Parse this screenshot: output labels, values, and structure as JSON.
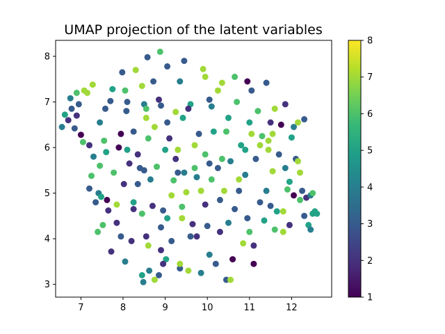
{
  "chart_data": {
    "type": "scatter",
    "title": "UMAP projection of the latent variables",
    "xlabel": "",
    "ylabel": "",
    "xlim": [
      6.4,
      12.95
    ],
    "ylim": [
      2.72,
      8.35
    ],
    "xticks": [
      7,
      8,
      9,
      10,
      11,
      12
    ],
    "yticks": [
      3,
      4,
      5,
      6,
      7,
      8
    ],
    "colorbar": {
      "label": "",
      "range": [
        1,
        8
      ],
      "ticks": [
        1,
        2,
        3,
        4,
        5,
        6,
        7,
        8
      ],
      "colormap": "viridis"
    },
    "grid": false,
    "legend": "none",
    "marker_size_label": "",
    "points": [
      [
        6.55,
        6.45,
        4
      ],
      [
        6.62,
        6.72,
        5
      ],
      [
        6.7,
        6.6,
        2
      ],
      [
        6.75,
        7.08,
        4
      ],
      [
        6.78,
        6.85,
        3
      ],
      [
        6.85,
        6.42,
        3
      ],
      [
        6.9,
        7.2,
        6
      ],
      [
        6.95,
        6.95,
        3
      ],
      [
        7.0,
        6.28,
        1
      ],
      [
        7.05,
        6.12,
        6
      ],
      [
        7.08,
        7.25,
        7
      ],
      [
        7.15,
        7.2,
        7
      ],
      [
        7.2,
        5.1,
        3
      ],
      [
        7.25,
        5.38,
        6
      ],
      [
        7.28,
        7.38,
        7
      ],
      [
        7.35,
        4.8,
        3
      ],
      [
        7.42,
        5.0,
        4
      ],
      [
        7.45,
        6.55,
        4
      ],
      [
        7.48,
        4.92,
        5
      ],
      [
        7.52,
        4.3,
        6
      ],
      [
        7.55,
        6.15,
        6
      ],
      [
        7.58,
        6.85,
        3
      ],
      [
        7.62,
        4.85,
        1
      ],
      [
        7.65,
        4.62,
        2
      ],
      [
        7.7,
        7.02,
        3
      ],
      [
        7.72,
        3.72,
        2
      ],
      [
        7.75,
        7.28,
        5
      ],
      [
        7.78,
        5.45,
        6
      ],
      [
        7.85,
        4.75,
        7
      ],
      [
        7.9,
        6.0,
        1
      ],
      [
        7.95,
        4.05,
        3
      ],
      [
        7.98,
        7.65,
        3
      ],
      [
        8.02,
        5.2,
        2
      ],
      [
        8.05,
        3.5,
        4
      ],
      [
        8.08,
        6.8,
        3
      ],
      [
        8.1,
        7.0,
        3
      ],
      [
        8.15,
        5.65,
        2
      ],
      [
        8.2,
        3.95,
        2
      ],
      [
        8.25,
        4.8,
        5
      ],
      [
        8.3,
        7.7,
        7
      ],
      [
        8.35,
        5.85,
        2
      ],
      [
        8.4,
        5.55,
        3
      ],
      [
        8.45,
        4.55,
        6
      ],
      [
        8.48,
        3.05,
        4
      ],
      [
        8.5,
        6.95,
        4
      ],
      [
        8.55,
        6.65,
        7
      ],
      [
        8.58,
        7.98,
        3
      ],
      [
        8.62,
        3.3,
        4
      ],
      [
        8.65,
        5.3,
        4
      ],
      [
        8.7,
        4.72,
        2
      ],
      [
        8.72,
        7.45,
        3
      ],
      [
        8.75,
        6.45,
        7
      ],
      [
        8.8,
        5.58,
        6
      ],
      [
        8.85,
        3.2,
        3
      ],
      [
        8.88,
        8.1,
        6
      ],
      [
        8.9,
        6.92,
        3
      ],
      [
        8.95,
        4.62,
        3
      ],
      [
        9.0,
        5.95,
        5
      ],
      [
        9.02,
        3.55,
        5
      ],
      [
        9.05,
        7.78,
        3
      ],
      [
        9.1,
        6.2,
        2
      ],
      [
        9.15,
        4.95,
        7
      ],
      [
        9.2,
        5.28,
        6
      ],
      [
        9.25,
        6.78,
        7
      ],
      [
        9.3,
        5.45,
        3
      ],
      [
        9.35,
        3.35,
        3
      ],
      [
        9.4,
        4.7,
        6
      ],
      [
        9.42,
        6.65,
        5
      ],
      [
        9.45,
        7.9,
        3
      ],
      [
        9.5,
        5.02,
        7
      ],
      [
        9.55,
        3.3,
        7
      ],
      [
        9.6,
        6.95,
        5
      ],
      [
        9.65,
        4.32,
        2
      ],
      [
        9.7,
        5.55,
        6
      ],
      [
        9.75,
        4.05,
        2
      ],
      [
        9.8,
        6.3,
        3
      ],
      [
        9.85,
        3.25,
        4
      ],
      [
        9.9,
        7.72,
        7
      ],
      [
        9.95,
        5.85,
        6
      ],
      [
        10.0,
        4.28,
        3
      ],
      [
        10.05,
        7.05,
        3
      ],
      [
        10.1,
        5.3,
        6
      ],
      [
        10.15,
        6.35,
        5
      ],
      [
        10.2,
        3.45,
        3
      ],
      [
        10.25,
        5.55,
        3
      ],
      [
        10.3,
        4.15,
        2
      ],
      [
        10.35,
        7.42,
        7
      ],
      [
        10.4,
        5.05,
        7
      ],
      [
        10.45,
        3.1,
        3
      ],
      [
        10.5,
        6.65,
        5
      ],
      [
        10.55,
        5.7,
        4
      ],
      [
        10.6,
        3.55,
        1
      ],
      [
        10.65,
        4.65,
        3
      ],
      [
        10.7,
        7.0,
        6
      ],
      [
        10.75,
        5.3,
        7
      ],
      [
        10.8,
        6.05,
        5
      ],
      [
        10.85,
        3.9,
        7
      ],
      [
        10.9,
        5.4,
        4
      ],
      [
        10.95,
        7.45,
        1
      ],
      [
        11.0,
        4.15,
        6
      ],
      [
        11.05,
        6.3,
        7
      ],
      [
        11.1,
        3.45,
        1
      ],
      [
        11.15,
        5.75,
        3
      ],
      [
        11.2,
        6.8,
        6
      ],
      [
        11.25,
        4.8,
        3
      ],
      [
        11.3,
        6.25,
        6
      ],
      [
        11.35,
        4.4,
        5
      ],
      [
        11.4,
        7.42,
        3
      ],
      [
        11.45,
        6.15,
        7
      ],
      [
        11.5,
        4.72,
        3
      ],
      [
        11.55,
        5.48,
        7
      ],
      [
        11.6,
        6.85,
        7
      ],
      [
        11.65,
        4.6,
        5
      ],
      [
        11.7,
        5.85,
        3
      ],
      [
        11.75,
        6.5,
        1
      ],
      [
        11.8,
        4.15,
        7
      ],
      [
        11.85,
        6.95,
        2
      ],
      [
        11.9,
        5.08,
        6
      ],
      [
        11.95,
        4.3,
        2
      ],
      [
        12.0,
        6.22,
        5
      ],
      [
        12.05,
        4.95,
        1
      ],
      [
        12.1,
        5.75,
        3
      ],
      [
        12.15,
        6.55,
        7
      ],
      [
        12.2,
        4.85,
        6
      ],
      [
        12.25,
        5.05,
        3
      ],
      [
        12.3,
        6.62,
        3
      ],
      [
        12.35,
        4.9,
        2
      ],
      [
        12.4,
        4.3,
        5
      ],
      [
        12.45,
        4.95,
        4
      ],
      [
        12.5,
        4.55,
        5
      ],
      [
        12.55,
        4.6,
        5
      ],
      [
        12.6,
        4.55,
        5
      ],
      [
        6.9,
        6.7,
        2
      ],
      [
        7.3,
        5.8,
        4
      ],
      [
        7.6,
        5.9,
        5
      ],
      [
        7.95,
        6.3,
        1
      ],
      [
        8.25,
        6.35,
        3
      ],
      [
        8.6,
        6.2,
        6
      ],
      [
        8.35,
        5.2,
        3
      ],
      [
        8.55,
        4.05,
        2
      ],
      [
        8.6,
        3.85,
        7
      ],
      [
        8.75,
        3.1,
        7
      ],
      [
        8.95,
        3.45,
        2
      ],
      [
        9.05,
        4.45,
        5
      ],
      [
        9.15,
        3.95,
        3
      ],
      [
        9.25,
        5.75,
        2
      ],
      [
        9.45,
        5.45,
        4
      ],
      [
        9.6,
        4.05,
        3
      ],
      [
        9.7,
        6.05,
        7
      ],
      [
        9.85,
        5.05,
        7
      ],
      [
        10.05,
        5.65,
        3
      ],
      [
        10.3,
        4.85,
        3
      ],
      [
        10.55,
        3.1,
        7
      ],
      [
        10.75,
        5.05,
        3
      ],
      [
        10.95,
        4.45,
        3
      ],
      [
        11.1,
        3.85,
        2
      ],
      [
        11.25,
        6.05,
        7
      ],
      [
        11.4,
        5.05,
        4
      ],
      [
        11.55,
        6.3,
        7
      ],
      [
        11.8,
        4.6,
        7
      ],
      [
        11.95,
        5.25,
        5
      ],
      [
        12.15,
        5.7,
        7
      ],
      [
        12.3,
        4.5,
        3
      ],
      [
        12.45,
        4.2,
        4
      ],
      [
        8.05,
        7.25,
        6
      ],
      [
        8.45,
        7.35,
        7
      ],
      [
        8.85,
        7.05,
        2
      ],
      [
        9.35,
        7.45,
        4
      ],
      [
        9.95,
        7.55,
        7
      ],
      [
        10.25,
        7.25,
        7
      ],
      [
        10.65,
        7.55,
        6
      ],
      [
        11.05,
        7.25,
        3
      ],
      [
        8.55,
        6.85,
        6
      ],
      [
        9.05,
        6.55,
        3
      ],
      [
        9.55,
        6.85,
        2
      ],
      [
        10.1,
        6.9,
        4
      ],
      [
        10.45,
        6.35,
        6
      ],
      [
        11.0,
        6.55,
        5
      ],
      [
        11.5,
        6.55,
        2
      ],
      [
        12.05,
        6.45,
        4
      ],
      [
        7.4,
        4.15,
        6
      ],
      [
        7.85,
        4.35,
        2
      ],
      [
        8.25,
        4.65,
        2
      ],
      [
        8.9,
        4.25,
        3
      ],
      [
        9.4,
        4.45,
        7
      ],
      [
        9.95,
        4.75,
        2
      ],
      [
        10.5,
        4.35,
        4
      ],
      [
        11.6,
        4.2,
        6
      ],
      [
        7.2,
        6.05,
        2
      ],
      [
        7.45,
        5.6,
        6
      ],
      [
        8.1,
        5.95,
        5
      ],
      [
        8.5,
        5.5,
        3
      ],
      [
        9.3,
        5.95,
        7
      ],
      [
        9.75,
        5.35,
        4
      ],
      [
        10.35,
        5.75,
        6
      ],
      [
        10.9,
        5.95,
        5
      ],
      [
        11.45,
        5.95,
        7
      ],
      [
        11.85,
        5.55,
        4
      ],
      [
        12.2,
        5.45,
        7
      ],
      [
        12.5,
        5.0,
        6
      ],
      [
        8.45,
        3.2,
        5
      ],
      [
        8.9,
        3.75,
        2
      ],
      [
        9.35,
        3.45,
        7
      ],
      [
        10.05,
        3.65,
        4
      ]
    ]
  },
  "colorbar_labels": [
    "1",
    "2",
    "3",
    "4",
    "5",
    "6",
    "7",
    "8"
  ],
  "x_tick_labels": [
    "7",
    "8",
    "9",
    "10",
    "11",
    "12"
  ],
  "y_tick_labels": [
    "3",
    "4",
    "5",
    "6",
    "7",
    "8"
  ]
}
